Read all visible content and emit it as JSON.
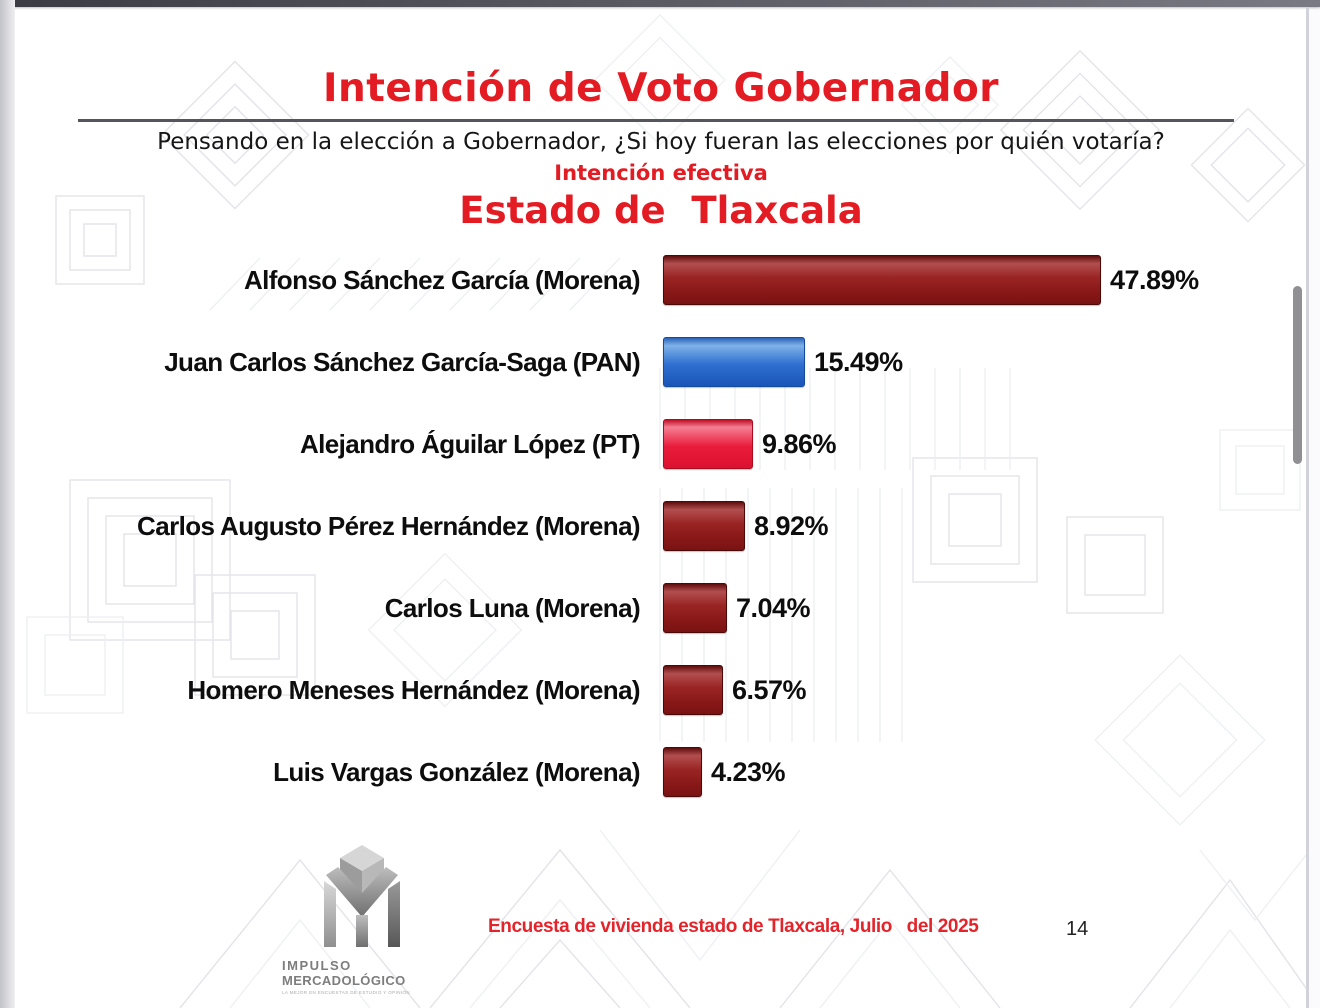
{
  "header": {
    "title": "Intención de Voto Gobernador"
  },
  "chart_data": {
    "type": "bar",
    "orientation": "horizontal",
    "question": "Pensando en la elección a Gobernador, ¿Si hoy fueran las elecciones por quién votaría?",
    "subtitle": "Intención efectiva",
    "title": "Estado de  Tlaxcala",
    "categories": [
      "Alfonso Sánchez García (Morena)",
      "Juan Carlos Sánchez García-Saga (PAN)",
      "Alejandro Águilar López (PT)",
      "Carlos Augusto Pérez Hernández (Morena)",
      "Carlos Luna (Morena)",
      "Homero Meneses Hernández (Morena)",
      "Luis Vargas González (Morena)"
    ],
    "values": [
      47.89,
      15.49,
      9.86,
      8.92,
      7.04,
      6.57,
      4.23
    ],
    "value_labels": [
      "47.89%",
      "15.49%",
      "9.86%",
      "8.92%",
      "7.04%",
      "6.57%",
      "4.23%"
    ],
    "bar_color_keys": [
      "maroon",
      "blue",
      "crimson",
      "maroon",
      "maroon",
      "maroon",
      "maroon"
    ],
    "bar_colors_hex": {
      "maroon": "#8e1b1b",
      "blue": "#2a6bce",
      "crimson": "#e81c3a"
    },
    "xlim": [
      0,
      52
    ],
    "grid": false,
    "legend": false
  },
  "footer": {
    "logo": {
      "icon": "impulso-mercadologico-monogram",
      "line1": "IMPULSO",
      "line2": "MERCADOLÓGICO",
      "tagline": "LA MEJOR EN ENCUESTAS DE ESTUDIO Y OPINIÓN"
    },
    "source": "Encuesta de vivienda estado de Tlaxcala, Julio   del 2025",
    "page_number": "14"
  },
  "colors": {
    "accent_red": "#e31b22",
    "text": "#0d0d0d",
    "rule": "#55555c",
    "watermark": "#e4e4ea",
    "scrollbar": "#8f8f94"
  }
}
